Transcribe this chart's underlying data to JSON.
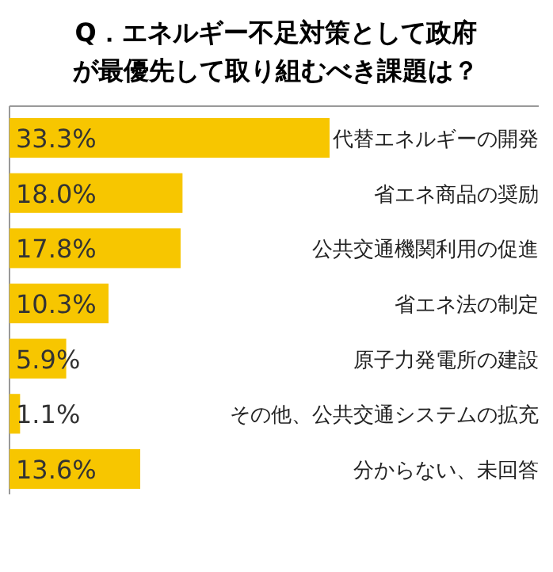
{
  "chart_data": {
    "type": "bar",
    "orientation": "horizontal",
    "title": "Q．エネルギー不足対策として政府が最優先して取り組むべき課題は？",
    "categories": [
      "代替エネルギーの開発",
      "省エネ商品の奨励",
      "公共交通機関利用の促進",
      "省エネ法の制定",
      "原子力発電所の建設",
      "その他、公共交通システムの拡充",
      "分からない、未回答"
    ],
    "values": [
      33.3,
      18.0,
      17.8,
      10.3,
      5.9,
      1.1,
      13.6
    ],
    "value_labels": [
      "33.3%",
      "18.0%",
      "17.8%",
      "10.3%",
      "5.9%",
      "1.1%",
      "13.6%"
    ],
    "color": "#f7c600"
  }
}
